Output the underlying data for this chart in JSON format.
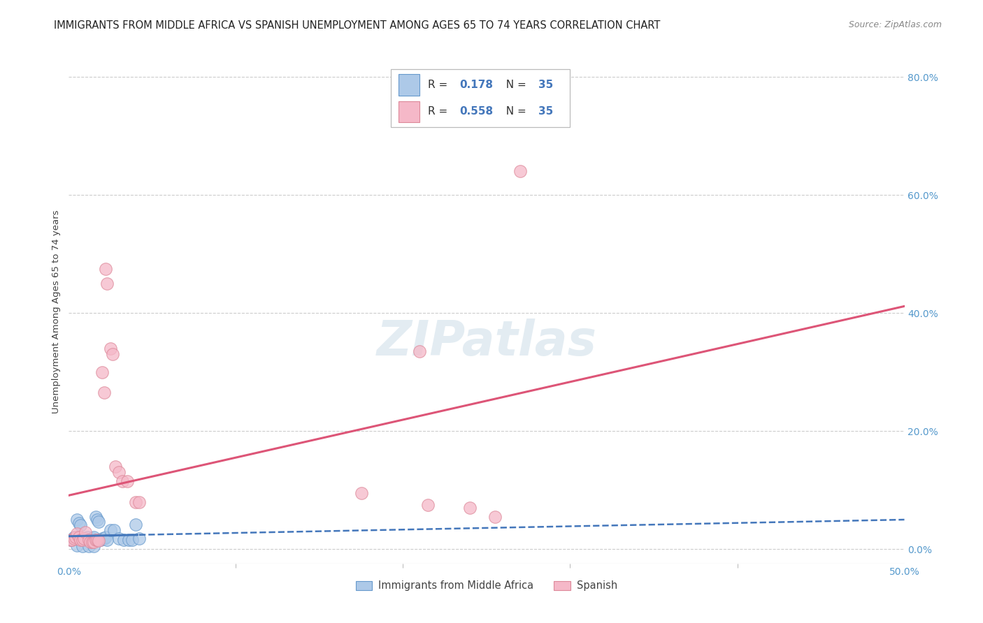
{
  "title": "IMMIGRANTS FROM MIDDLE AFRICA VS SPANISH UNEMPLOYMENT AMONG AGES 65 TO 74 YEARS CORRELATION CHART",
  "source": "Source: ZipAtlas.com",
  "ylabel": "Unemployment Among Ages 65 to 74 years",
  "legend_label_1": "Immigrants from Middle Africa",
  "legend_label_2": "Spanish",
  "R1": 0.178,
  "N1": 35,
  "R2": 0.558,
  "N2": 35,
  "blue_fill": "#adc9e8",
  "pink_fill": "#f5b8c8",
  "blue_edge": "#6699cc",
  "pink_edge": "#dd8899",
  "blue_line": "#4477bb",
  "pink_line": "#dd5577",
  "blue_scatter": [
    [
      0.001,
      0.016
    ],
    [
      0.002,
      0.016
    ],
    [
      0.003,
      0.02
    ],
    [
      0.004,
      0.018
    ],
    [
      0.005,
      0.05
    ],
    [
      0.006,
      0.044
    ],
    [
      0.007,
      0.04
    ],
    [
      0.008,
      0.016
    ],
    [
      0.009,
      0.016
    ],
    [
      0.01,
      0.018
    ],
    [
      0.011,
      0.02
    ],
    [
      0.012,
      0.016
    ],
    [
      0.013,
      0.016
    ],
    [
      0.014,
      0.018
    ],
    [
      0.015,
      0.02
    ],
    [
      0.016,
      0.055
    ],
    [
      0.017,
      0.05
    ],
    [
      0.018,
      0.046
    ],
    [
      0.019,
      0.016
    ],
    [
      0.02,
      0.018
    ],
    [
      0.021,
      0.018
    ],
    [
      0.022,
      0.02
    ],
    [
      0.023,
      0.016
    ],
    [
      0.025,
      0.032
    ],
    [
      0.027,
      0.032
    ],
    [
      0.03,
      0.018
    ],
    [
      0.033,
      0.016
    ],
    [
      0.036,
      0.016
    ],
    [
      0.038,
      0.016
    ],
    [
      0.04,
      0.042
    ],
    [
      0.042,
      0.018
    ],
    [
      0.005,
      0.006
    ],
    [
      0.008,
      0.005
    ],
    [
      0.012,
      0.005
    ],
    [
      0.015,
      0.005
    ]
  ],
  "pink_scatter": [
    [
      0.001,
      0.016
    ],
    [
      0.002,
      0.016
    ],
    [
      0.003,
      0.018
    ],
    [
      0.004,
      0.02
    ],
    [
      0.005,
      0.026
    ],
    [
      0.006,
      0.02
    ],
    [
      0.007,
      0.016
    ],
    [
      0.008,
      0.016
    ],
    [
      0.009,
      0.018
    ],
    [
      0.01,
      0.028
    ],
    [
      0.012,
      0.016
    ],
    [
      0.013,
      0.012
    ],
    [
      0.014,
      0.012
    ],
    [
      0.015,
      0.012
    ],
    [
      0.016,
      0.016
    ],
    [
      0.017,
      0.016
    ],
    [
      0.018,
      0.014
    ],
    [
      0.02,
      0.3
    ],
    [
      0.021,
      0.265
    ],
    [
      0.022,
      0.475
    ],
    [
      0.023,
      0.45
    ],
    [
      0.025,
      0.34
    ],
    [
      0.026,
      0.33
    ],
    [
      0.028,
      0.14
    ],
    [
      0.03,
      0.13
    ],
    [
      0.032,
      0.115
    ],
    [
      0.035,
      0.115
    ],
    [
      0.04,
      0.08
    ],
    [
      0.042,
      0.08
    ],
    [
      0.27,
      0.64
    ],
    [
      0.21,
      0.335
    ],
    [
      0.175,
      0.095
    ],
    [
      0.215,
      0.075
    ],
    [
      0.24,
      0.07
    ],
    [
      0.255,
      0.055
    ]
  ],
  "x_min": 0.0,
  "x_max": 0.5,
  "y_min": -0.025,
  "y_max": 0.83,
  "yticks": [
    0.0,
    0.2,
    0.4,
    0.6,
    0.8
  ],
  "yticklabels": [
    "0.0%",
    "20.0%",
    "40.0%",
    "60.0%",
    "80.0%"
  ],
  "grid_color": "#cccccc",
  "bg_color": "#ffffff",
  "watermark": "ZIPatlas",
  "watermark_color": "#ccdde8",
  "title_color": "#222222",
  "source_color": "#888888",
  "axis_label_color": "#444444",
  "tick_color": "#5599cc",
  "legend_text_color": "#333333",
  "legend_val_color": "#4477bb"
}
